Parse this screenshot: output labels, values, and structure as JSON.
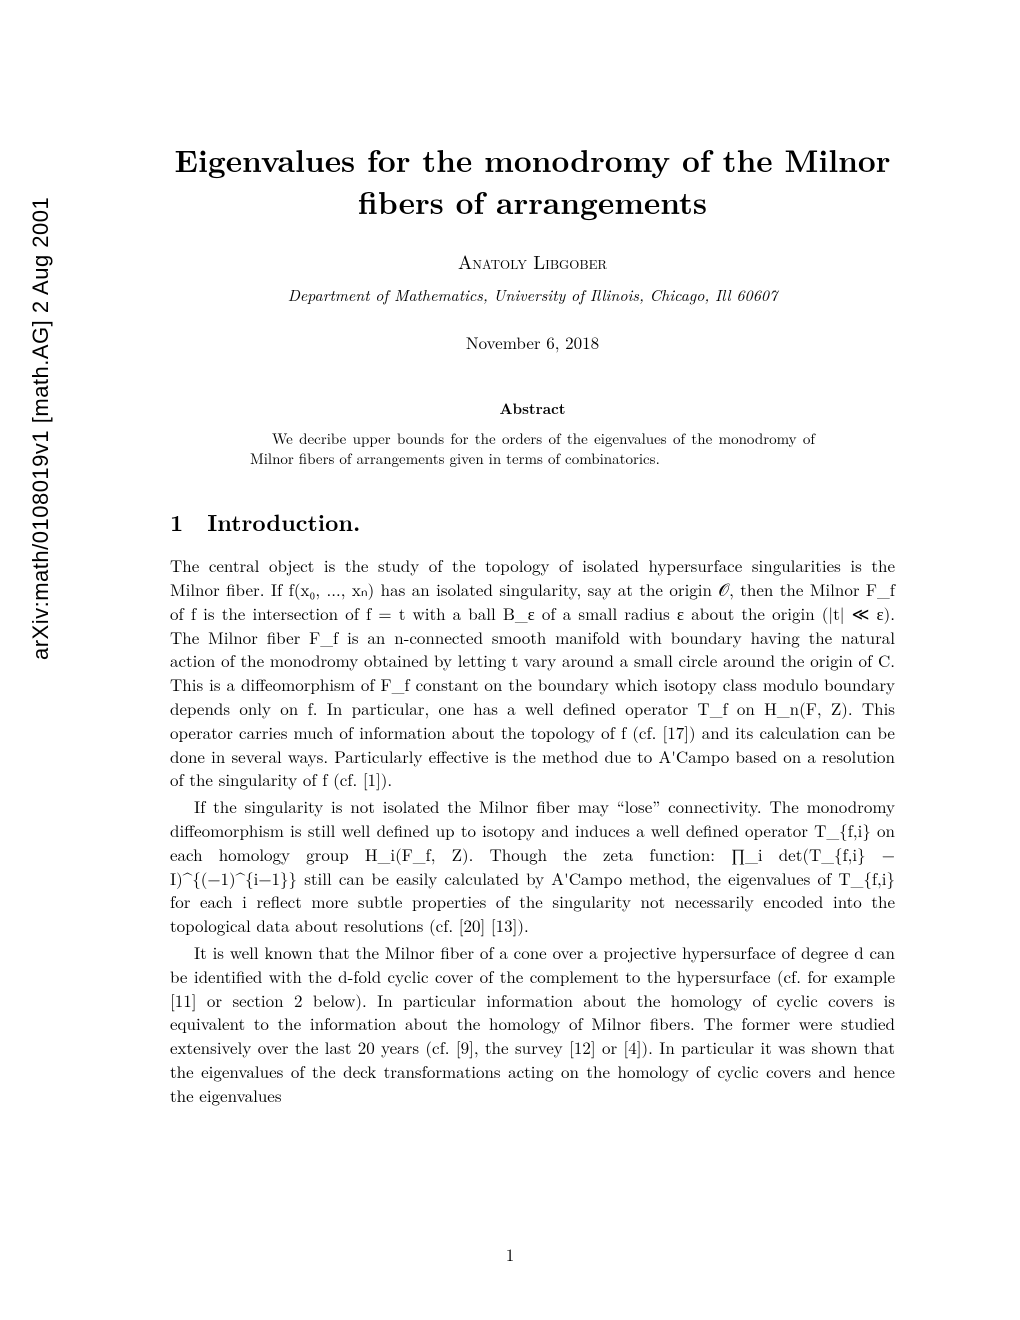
{
  "arxiv_stamp": "arXiv:math/0108019v1  [math.AG]  2 Aug 2001",
  "title": "Eigenvalues for the monodromy of the Milnor fibers of arrangements",
  "author": "Anatoly Libgober",
  "affiliation": "Department of Mathematics, University of Illinois, Chicago, Ill 60607",
  "date": "November 6, 2018",
  "abstract": {
    "heading": "Abstract",
    "body": "We decribe upper bounds for the orders of the eigenvalues of the monodromy of Milnor fibers of arrangements given in terms of combinatorics."
  },
  "section1": {
    "num": "1",
    "title": "Introduction."
  },
  "body": {
    "p1": "The central object is the study of the topology of isolated hypersurface singularities is the Milnor fiber. If f(x₀, ..., xₙ) has an isolated singularity, say at the origin 𝒪, then the Milnor F_f of f is the intersection of f = t with a ball B_ε of a small radius ε about the origin (|t| ≪ ε). The Milnor fiber F_f is an n-connected smooth manifold with boundary having the natural action of the monodromy obtained by letting t vary around a small circle around the origin of C. This is a diffeomorphism of F_f constant on the boundary which isotopy class modulo boundary depends only on f. In particular, one has a well defined operator T_f on H_n(F, Z). This operator carries much of information about the topology of f (cf. [17]) and its calculation can be done in several ways. Particularly effective is the method due to A'Campo based on a resolution of the singularity of f (cf. [1]).",
    "p2": "If the singularity is not isolated the Milnor fiber may “lose” connectivity. The monodromy diffeomorphism is still well defined up to isotopy and induces a well defined operator T_{f,i} on each homology group H_i(F_f, Z). Though the zeta function: ∏_i det(T_{f,i} − I)^{(−1)^{i−1}} still can be easily calculated by A'Campo method, the eigenvalues of T_{f,i} for each i reflect more subtle properties of the singularity not necessarily encoded into the topological data about resolutions (cf. [20] [13]).",
    "p3": "It is well known that the Milnor fiber of a cone over a projective hypersurface of degree d can be identified with the d-fold cyclic cover of the complement to the hypersurface (cf. for example [11] or section 2 below). In particular information about the homology of cyclic covers is equivalent to the information about the homology of Milnor fibers. The former were studied extensively over the last 20 years (cf. [9], the survey [12] or [4]). In particular it was shown that the eigenvalues of the deck transformations acting on the homology of cyclic covers and hence the eigenvalues"
  },
  "pagenum": "1",
  "colors": {
    "text": "#000000",
    "background": "#ffffff"
  },
  "typography": {
    "title_fontsize": 31,
    "author_fontsize": 19,
    "affiliation_fontsize": 16,
    "date_fontsize": 17,
    "abstract_head_fontsize": 15,
    "abstract_body_fontsize": 15,
    "section_heading_fontsize": 23,
    "body_fontsize": 17,
    "arxiv_fontsize": 22
  }
}
